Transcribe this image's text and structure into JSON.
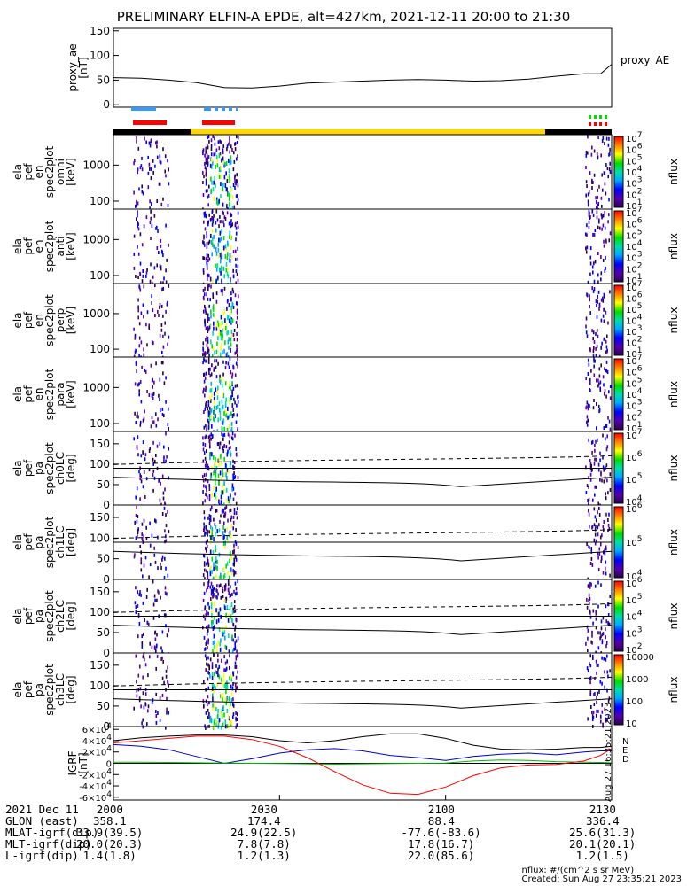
{
  "title": "PRELIMINARY ELFIN-A EPDE, alt=427km, 2021-12-11 20:00 to 21:30",
  "panel_labels": [
    [
      "proxy_ae",
      "[nT]"
    ],
    [
      "ela",
      "pef",
      "en",
      "spec2plot",
      "omni",
      "[keV]"
    ],
    [
      "ela",
      "pef",
      "en",
      "spec2plot",
      "anti",
      "[keV]"
    ],
    [
      "ela",
      "pef",
      "en",
      "spec2plot",
      "perp",
      "[keV]"
    ],
    [
      "ela",
      "pef",
      "en",
      "spec2plot",
      "para",
      "[keV]"
    ],
    [
      "ela",
      "pef",
      "pa",
      "spec2plot",
      "ch0LC",
      "[deg]"
    ],
    [
      "ela",
      "pef",
      "pa",
      "spec2plot",
      "ch1LC",
      "[deg]"
    ],
    [
      "ela",
      "pef",
      "pa",
      "spec2plot",
      "ch2LC",
      "[deg]"
    ],
    [
      "ela",
      "pef",
      "pa",
      "spec2plot",
      "ch3LC",
      "[deg]"
    ],
    [
      "IGRF",
      "[nT]"
    ]
  ],
  "right_label": "proxy_AE",
  "colorbar_unit": "nflux",
  "colorbars": [
    [
      "10^1",
      "10^2",
      "10^3",
      "10^4",
      "10^5",
      "10^6",
      "10^7"
    ],
    [
      "10^1",
      "10^2",
      "10^3",
      "10^4",
      "10^5",
      "10^6",
      "10^7"
    ],
    [
      "10^1",
      "10^2",
      "10^3",
      "10^4",
      "10^5",
      "10^6",
      "10^7"
    ],
    [
      "10^1",
      "10^2",
      "10^3",
      "10^4",
      "10^5",
      "10^6",
      "10^7"
    ],
    [
      "10^4",
      "10^5",
      "10^6",
      "10^7"
    ],
    [
      "10^4",
      "10^5",
      "10^6"
    ],
    [
      "10^2",
      "10^3",
      "10^4",
      "10^5",
      "10^6"
    ],
    [
      "10",
      "100",
      "1000",
      "10000"
    ]
  ],
  "igrf_legend": [
    "N",
    "E",
    "D"
  ],
  "igrf_colors": {
    "N": "#0000cc",
    "E": "#00bb00",
    "D": "#ff0000",
    "T": "#000000"
  },
  "vertical_stamp": "Sun Aug 27 16:35:21 2023",
  "footer": {
    "rows": [
      {
        "label": "2021 Dec 11",
        "vals": [
          "2000",
          "2030",
          "2100",
          "2130"
        ]
      },
      {
        "label": "GLON (east)",
        "vals": [
          "358.1",
          "174.4",
          "88.4",
          "336.4"
        ]
      },
      {
        "label": "MLAT-igrf(dip)",
        "vals": [
          "33.9(39.5)",
          "24.9(22.5)",
          "-77.6(-83.6)",
          "25.6(31.3)"
        ]
      },
      {
        "label": "MLT-igrf(dip)",
        "vals": [
          "20.0(20.3)",
          "7.8(7.8)",
          "17.8(16.7)",
          "20.1(20.1)"
        ]
      },
      {
        "label": "L-igrf(dip)",
        "vals": [
          "1.4(1.8)",
          "1.2(1.3)",
          "22.0(85.6)",
          "1.2(1.5)"
        ]
      }
    ],
    "nflux_def": "nflux: #/(cm^2 s sr MeV)",
    "created": "Created: Sun Aug 27 23:35:21 2023"
  },
  "chart_data": [
    {
      "type": "line",
      "title": "proxy_ae",
      "ylabel": "proxy_ae [nT]",
      "ylim": [
        -5,
        155
      ],
      "yticks": [
        0,
        50,
        100,
        150
      ],
      "x": [
        0,
        5,
        10,
        15,
        20,
        25,
        30,
        35,
        40,
        45,
        50,
        55,
        60,
        65,
        70,
        75,
        80,
        85,
        88,
        90
      ],
      "values": [
        55,
        54,
        50,
        45,
        35,
        34,
        38,
        44,
        46,
        48,
        50,
        51,
        50,
        48,
        49,
        52,
        58,
        63,
        63,
        82
      ]
    },
    {
      "type": "heatmap",
      "title": "omni energy spectrogram",
      "ylabel": "[keV]",
      "yscale": "log",
      "yticks": [
        100,
        1000
      ],
      "ylim": [
        60,
        7000
      ]
    },
    {
      "type": "heatmap",
      "title": "anti energy spectrogram",
      "ylabel": "[keV]",
      "yscale": "log",
      "yticks": [
        100,
        1000
      ],
      "ylim": [
        60,
        7000
      ]
    },
    {
      "type": "heatmap",
      "title": "perp energy spectrogram",
      "ylabel": "[keV]",
      "yscale": "log",
      "yticks": [
        100,
        1000
      ],
      "ylim": [
        60,
        7000
      ]
    },
    {
      "type": "heatmap",
      "title": "para energy spectrogram",
      "ylabel": "[keV]",
      "yscale": "log",
      "yticks": [
        100,
        1000
      ],
      "ylim": [
        60,
        7000
      ]
    },
    {
      "type": "heatmap",
      "title": "ch0LC pitch angle",
      "ylabel": "[deg]",
      "yticks": [
        0,
        50,
        100,
        150
      ],
      "ylim": [
        0,
        180
      ]
    },
    {
      "type": "heatmap",
      "title": "ch1LC pitch angle",
      "ylabel": "[deg]",
      "yticks": [
        0,
        50,
        100,
        150
      ],
      "ylim": [
        0,
        180
      ]
    },
    {
      "type": "heatmap",
      "title": "ch2LC pitch angle",
      "ylabel": "[deg]",
      "yticks": [
        0,
        50,
        100,
        150
      ],
      "ylim": [
        0,
        180
      ]
    },
    {
      "type": "heatmap",
      "title": "ch3LC pitch angle",
      "ylabel": "[deg]",
      "yticks": [
        0,
        50,
        100,
        150
      ],
      "ylim": [
        0,
        180
      ]
    },
    {
      "type": "line",
      "title": "IGRF",
      "ylabel": "IGRF [nT]",
      "ylim": [
        -65000,
        65000
      ],
      "yticks": [
        -60000,
        -40000,
        -20000,
        0,
        20000,
        40000,
        60000
      ],
      "ytick_labels": [
        "-6×10^4",
        "-4×10^4",
        "-2×10^4",
        "0",
        "2×10^4",
        "4×10^4",
        "6×10^4"
      ],
      "x": [
        0,
        5,
        10,
        15,
        20,
        25,
        30,
        35,
        40,
        45,
        50,
        55,
        60,
        65,
        70,
        75,
        80,
        85,
        88,
        90
      ],
      "series": [
        {
          "name": "T",
          "values": [
            40000,
            45000,
            48000,
            50000,
            50000,
            47000,
            40000,
            36000,
            40000,
            47000,
            52000,
            52000,
            44000,
            32000,
            25000,
            24000,
            25000,
            28000,
            28000,
            30000
          ]
        },
        {
          "name": "N",
          "values": [
            33000,
            30000,
            24000,
            12000,
            0,
            8000,
            18000,
            24000,
            26000,
            22000,
            14000,
            10000,
            5000,
            12000,
            16000,
            18000,
            15000,
            20000,
            22000,
            22000
          ]
        },
        {
          "name": "E",
          "values": [
            2000,
            2000,
            1500,
            1000,
            500,
            0,
            -500,
            -1000,
            -1500,
            -1000,
            -500,
            0,
            500,
            4000,
            6000,
            5000,
            3000,
            2000,
            1500,
            1000
          ]
        },
        {
          "name": "D",
          "values": [
            36000,
            40000,
            44000,
            48000,
            48000,
            42000,
            30000,
            10000,
            -15000,
            -38000,
            -53000,
            -55000,
            -42000,
            -22000,
            -8000,
            -3000,
            -2000,
            4000,
            14000,
            26000
          ]
        }
      ]
    }
  ]
}
